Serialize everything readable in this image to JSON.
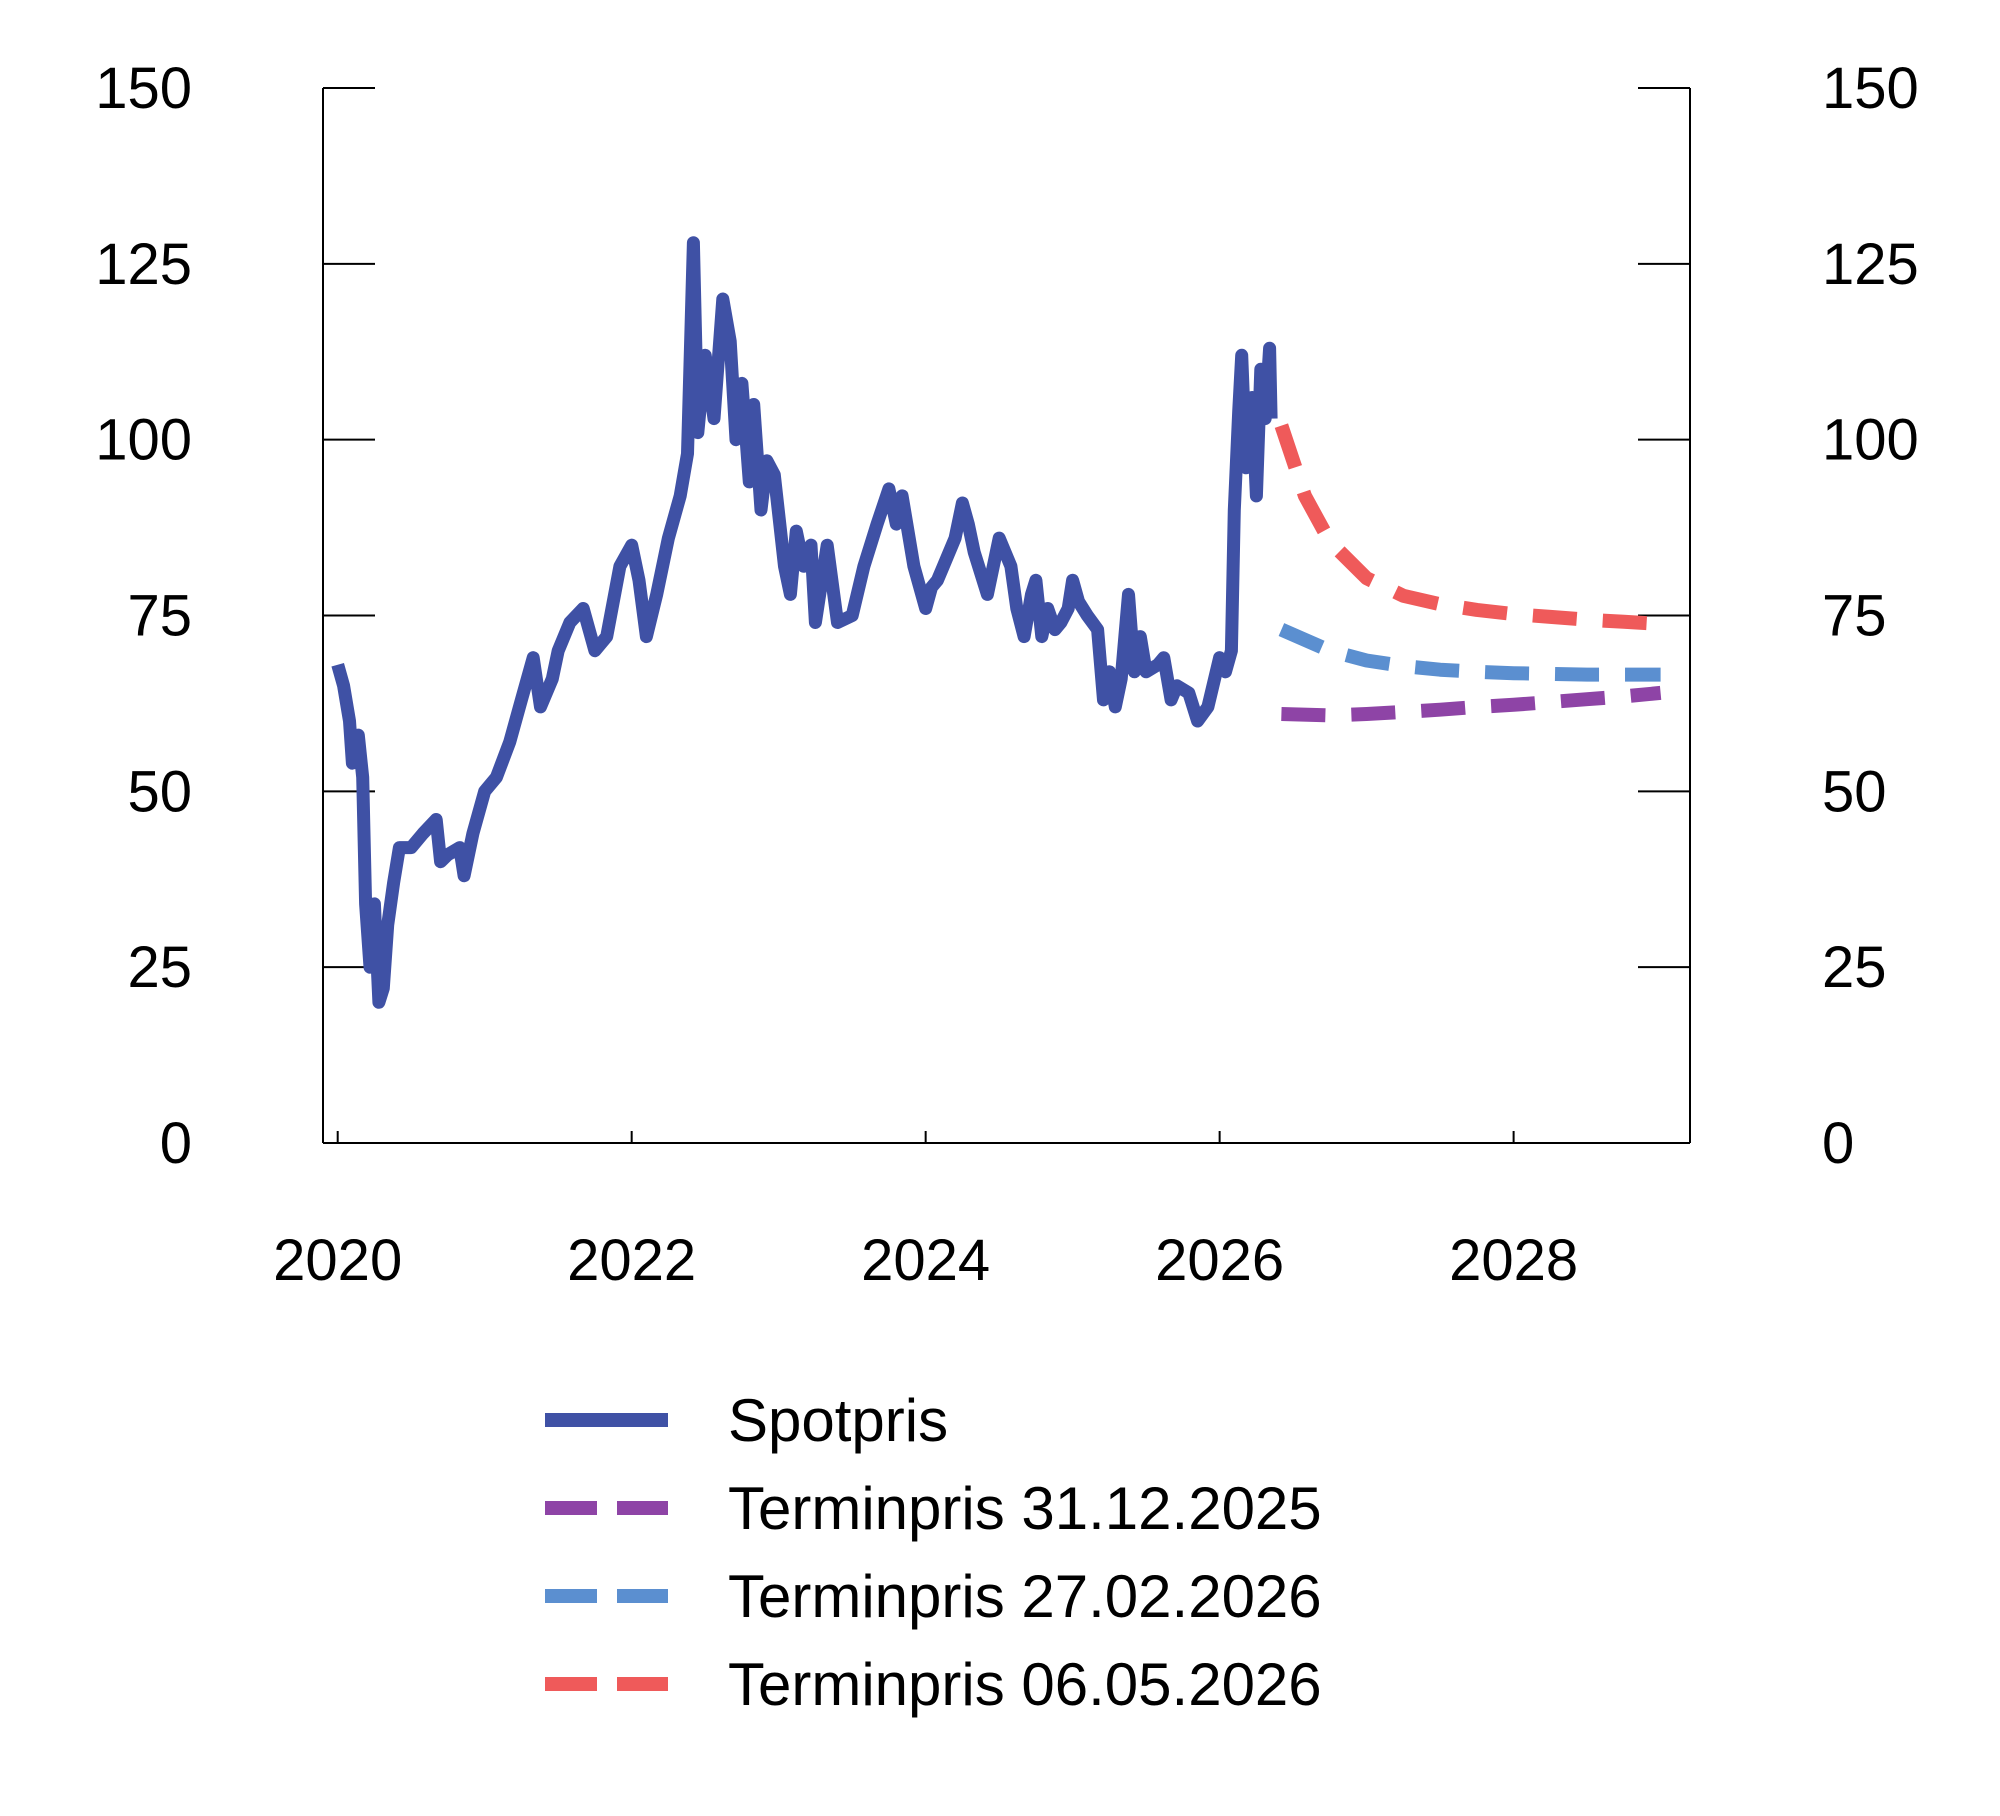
{
  "chart_data": {
    "type": "line",
    "title": "",
    "xlabel": "",
    "ylabel": "",
    "xlim": [
      2019.9,
      2029.2
    ],
    "ylim": [
      0,
      150
    ],
    "x_ticks": [
      2020,
      2022,
      2024,
      2026,
      2028
    ],
    "y_ticks": [
      0,
      25,
      50,
      75,
      100,
      125,
      150
    ],
    "right_axis": true,
    "grid": false,
    "legend": "bottom",
    "series": [
      {
        "name": "Spotpris",
        "color": "#3f51a5",
        "dash": "solid",
        "points": [
          [
            2020.0,
            68
          ],
          [
            2020.04,
            65
          ],
          [
            2020.08,
            60
          ],
          [
            2020.1,
            54
          ],
          [
            2020.14,
            58
          ],
          [
            2020.17,
            52
          ],
          [
            2020.19,
            34
          ],
          [
            2020.22,
            25
          ],
          [
            2020.25,
            34
          ],
          [
            2020.28,
            20
          ],
          [
            2020.31,
            22
          ],
          [
            2020.34,
            31
          ],
          [
            2020.38,
            37
          ],
          [
            2020.42,
            42
          ],
          [
            2020.5,
            42
          ],
          [
            2020.58,
            44
          ],
          [
            2020.67,
            46
          ],
          [
            2020.7,
            40
          ],
          [
            2020.75,
            41
          ],
          [
            2020.83,
            42
          ],
          [
            2020.86,
            38
          ],
          [
            2020.92,
            44
          ],
          [
            2021.0,
            50
          ],
          [
            2021.08,
            52
          ],
          [
            2021.17,
            57
          ],
          [
            2021.25,
            63
          ],
          [
            2021.33,
            69
          ],
          [
            2021.38,
            62
          ],
          [
            2021.46,
            66
          ],
          [
            2021.5,
            70
          ],
          [
            2021.58,
            74
          ],
          [
            2021.67,
            76
          ],
          [
            2021.75,
            70
          ],
          [
            2021.83,
            72
          ],
          [
            2021.92,
            82
          ],
          [
            2022.0,
            85
          ],
          [
            2022.05,
            80
          ],
          [
            2022.1,
            72
          ],
          [
            2022.17,
            78
          ],
          [
            2022.25,
            86
          ],
          [
            2022.33,
            92
          ],
          [
            2022.38,
            98
          ],
          [
            2022.42,
            128
          ],
          [
            2022.45,
            101
          ],
          [
            2022.5,
            112
          ],
          [
            2022.56,
            103
          ],
          [
            2022.62,
            120
          ],
          [
            2022.67,
            114
          ],
          [
            2022.71,
            100
          ],
          [
            2022.75,
            108
          ],
          [
            2022.8,
            94
          ],
          [
            2022.83,
            105
          ],
          [
            2022.88,
            90
          ],
          [
            2022.92,
            97
          ],
          [
            2022.97,
            95
          ],
          [
            2023.04,
            82
          ],
          [
            2023.08,
            78
          ],
          [
            2023.12,
            87
          ],
          [
            2023.17,
            82
          ],
          [
            2023.22,
            85
          ],
          [
            2023.25,
            74
          ],
          [
            2023.33,
            85
          ],
          [
            2023.4,
            74
          ],
          [
            2023.5,
            75
          ],
          [
            2023.58,
            82
          ],
          [
            2023.67,
            88
          ],
          [
            2023.75,
            93
          ],
          [
            2023.8,
            88
          ],
          [
            2023.84,
            92
          ],
          [
            2023.92,
            82
          ],
          [
            2024.0,
            76
          ],
          [
            2024.04,
            79
          ],
          [
            2024.08,
            80
          ],
          [
            2024.12,
            82
          ],
          [
            2024.2,
            86
          ],
          [
            2024.25,
            91
          ],
          [
            2024.29,
            88
          ],
          [
            2024.33,
            84
          ],
          [
            2024.42,
            78
          ],
          [
            2024.5,
            86
          ],
          [
            2024.58,
            82
          ],
          [
            2024.62,
            76
          ],
          [
            2024.67,
            72
          ],
          [
            2024.72,
            78
          ],
          [
            2024.75,
            80
          ],
          [
            2024.79,
            72
          ],
          [
            2024.83,
            76
          ],
          [
            2024.88,
            73
          ],
          [
            2024.92,
            74
          ],
          [
            2024.97,
            76
          ],
          [
            2025.0,
            80
          ],
          [
            2025.04,
            77
          ],
          [
            2025.1,
            75
          ],
          [
            2025.17,
            73
          ],
          [
            2025.21,
            63
          ],
          [
            2025.25,
            67
          ],
          [
            2025.29,
            62
          ],
          [
            2025.33,
            66
          ],
          [
            2025.38,
            78
          ],
          [
            2025.42,
            67
          ],
          [
            2025.46,
            72
          ],
          [
            2025.5,
            67
          ],
          [
            2025.58,
            68
          ],
          [
            2025.62,
            69
          ],
          [
            2025.67,
            63
          ],
          [
            2025.71,
            65
          ],
          [
            2025.79,
            64
          ],
          [
            2025.85,
            60
          ],
          [
            2025.92,
            62
          ],
          [
            2026.0,
            69
          ],
          [
            2026.04,
            67
          ],
          [
            2026.08,
            70
          ],
          [
            2026.1,
            90
          ],
          [
            2026.13,
            104
          ],
          [
            2026.15,
            112
          ],
          [
            2026.18,
            96
          ],
          [
            2026.22,
            106
          ],
          [
            2026.25,
            92
          ],
          [
            2026.28,
            110
          ],
          [
            2026.31,
            103
          ],
          [
            2026.34,
            113
          ],
          [
            2026.35,
            103
          ]
        ]
      },
      {
        "name": "Terminpris 31.12.2025",
        "color": "#8e44a6",
        "dash": "dashed",
        "points": [
          [
            2026.42,
            61
          ],
          [
            2026.75,
            60.8
          ],
          [
            2027.0,
            61
          ],
          [
            2027.25,
            61.3
          ],
          [
            2027.5,
            61.6
          ],
          [
            2027.75,
            62
          ],
          [
            2028.0,
            62.3
          ],
          [
            2028.25,
            62.7
          ],
          [
            2028.5,
            63.1
          ],
          [
            2028.75,
            63.5
          ],
          [
            2029.0,
            64
          ]
        ]
      },
      {
        "name": "Terminpris 27.02.2026",
        "color": "#5b8fd0",
        "dash": "dashed",
        "points": [
          [
            2026.42,
            73
          ],
          [
            2026.75,
            70
          ],
          [
            2027.0,
            68.6
          ],
          [
            2027.25,
            67.8
          ],
          [
            2027.5,
            67.3
          ],
          [
            2027.75,
            67
          ],
          [
            2028.0,
            66.8
          ],
          [
            2028.25,
            66.7
          ],
          [
            2028.5,
            66.6
          ],
          [
            2028.75,
            66.6
          ],
          [
            2029.0,
            66.6
          ]
        ]
      },
      {
        "name": "Terminpris 06.05.2026",
        "color": "#ef5a5a",
        "dash": "dashed",
        "points": [
          [
            2026.42,
            102
          ],
          [
            2026.58,
            92
          ],
          [
            2026.75,
            85.5
          ],
          [
            2027.0,
            80.3
          ],
          [
            2027.25,
            77.8
          ],
          [
            2027.5,
            76.6
          ],
          [
            2027.75,
            75.8
          ],
          [
            2028.0,
            75.2
          ],
          [
            2028.25,
            74.8
          ],
          [
            2028.5,
            74.4
          ],
          [
            2028.75,
            74.1
          ],
          [
            2029.0,
            73.8
          ]
        ]
      }
    ]
  }
}
